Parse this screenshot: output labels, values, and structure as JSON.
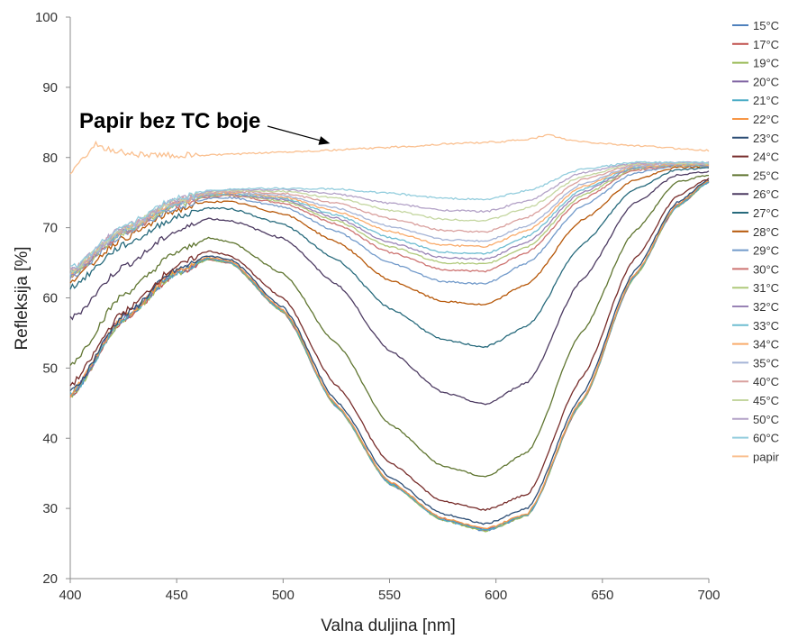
{
  "chart_data": {
    "type": "line",
    "xlabel": "Valna duljina [nm]",
    "ylabel": "Refleksija [%]",
    "xlim": [
      400,
      700
    ],
    "ylim": [
      20,
      100
    ],
    "xticks": [
      400,
      450,
      500,
      550,
      600,
      650,
      700
    ],
    "yticks": [
      20,
      30,
      40,
      50,
      60,
      70,
      80,
      90,
      100
    ],
    "grid": false,
    "legend_position": "right",
    "annotation": {
      "text": "Papir bez TC boje",
      "arrow_to": [
        522,
        82
      ]
    },
    "series": [
      {
        "name": "15°C",
        "color": "#4F81BD",
        "x": [
          400,
          425,
          450,
          465,
          475,
          500,
          525,
          550,
          575,
          595,
          615,
          640,
          665,
          685,
          700
        ],
        "y": [
          46.0,
          57.0,
          63.5,
          65.5,
          65.0,
          58.0,
          44.5,
          33.5,
          28.3,
          26.8,
          29.0,
          45.0,
          63.0,
          73.0,
          76.5
        ]
      },
      {
        "name": "17°C",
        "color": "#C0504D",
        "x": [
          400,
          425,
          450,
          465,
          475,
          500,
          525,
          550,
          575,
          595,
          615,
          640,
          665,
          685,
          700
        ],
        "y": [
          46.0,
          57.0,
          63.5,
          65.5,
          65.0,
          58.0,
          44.5,
          33.6,
          28.4,
          26.9,
          29.1,
          45.0,
          63.0,
          73.0,
          76.5
        ]
      },
      {
        "name": "19°C",
        "color": "#9BBB59",
        "x": [
          400,
          425,
          450,
          465,
          475,
          500,
          525,
          550,
          575,
          595,
          615,
          640,
          665,
          685,
          700
        ],
        "y": [
          46.0,
          57.0,
          63.5,
          65.5,
          65.0,
          58.0,
          44.5,
          33.5,
          28.3,
          26.8,
          29.0,
          45.0,
          63.0,
          73.0,
          76.5
        ]
      },
      {
        "name": "20°C",
        "color": "#8064A2",
        "x": [
          400,
          425,
          450,
          465,
          475,
          500,
          525,
          550,
          575,
          595,
          615,
          640,
          665,
          685,
          700
        ],
        "y": [
          46.2,
          57.2,
          63.7,
          65.7,
          65.2,
          58.2,
          44.7,
          33.7,
          28.5,
          27.0,
          29.2,
          45.2,
          63.2,
          73.2,
          76.6
        ]
      },
      {
        "name": "21°C",
        "color": "#4BACC6",
        "x": [
          400,
          425,
          450,
          465,
          475,
          500,
          525,
          550,
          575,
          595,
          615,
          640,
          665,
          685,
          700
        ],
        "y": [
          46.1,
          57.1,
          63.6,
          65.6,
          65.1,
          58.1,
          44.6,
          33.6,
          28.4,
          26.9,
          29.1,
          45.1,
          63.1,
          73.1,
          76.5
        ]
      },
      {
        "name": "22°C",
        "color": "#F79646",
        "x": [
          400,
          425,
          450,
          465,
          475,
          500,
          525,
          550,
          575,
          595,
          615,
          640,
          665,
          685,
          700
        ],
        "y": [
          46.3,
          57.3,
          63.8,
          65.8,
          65.3,
          58.3,
          44.8,
          33.8,
          28.6,
          27.1,
          29.3,
          45.3,
          63.3,
          73.3,
          76.7
        ]
      },
      {
        "name": "23°C",
        "color": "#2C4D75",
        "x": [
          400,
          425,
          450,
          465,
          475,
          500,
          525,
          550,
          575,
          595,
          615,
          640,
          665,
          685,
          700
        ],
        "y": [
          46.5,
          57.5,
          64.0,
          66.0,
          65.5,
          58.7,
          45.3,
          34.4,
          29.2,
          27.8,
          30.0,
          46.0,
          63.8,
          73.6,
          76.8
        ]
      },
      {
        "name": "24°C",
        "color": "#772C2A",
        "x": [
          400,
          425,
          450,
          465,
          475,
          500,
          525,
          550,
          575,
          595,
          615,
          640,
          665,
          685,
          700
        ],
        "y": [
          47.5,
          58.0,
          64.5,
          66.7,
          66.0,
          60.0,
          47.5,
          36.5,
          31.0,
          29.8,
          32.0,
          48.5,
          65.5,
          74.5,
          77.0
        ]
      },
      {
        "name": "25°C",
        "color": "#5F7530",
        "x": [
          400,
          425,
          450,
          465,
          475,
          500,
          525,
          550,
          575,
          595,
          615,
          640,
          665,
          685,
          700
        ],
        "y": [
          50.5,
          60.5,
          66.5,
          68.5,
          68.0,
          63.5,
          53.5,
          42.0,
          36.0,
          34.5,
          38.0,
          55.0,
          69.5,
          76.5,
          77.5
        ]
      },
      {
        "name": "26°C",
        "color": "#4D3B62",
        "x": [
          400,
          425,
          450,
          465,
          475,
          500,
          525,
          550,
          575,
          595,
          615,
          640,
          665,
          685,
          700
        ],
        "y": [
          57.0,
          64.5,
          69.5,
          71.3,
          71.0,
          68.5,
          62.0,
          52.5,
          46.5,
          44.8,
          48.0,
          62.5,
          73.5,
          77.5,
          78.0
        ]
      },
      {
        "name": "27°C",
        "color": "#276A7C",
        "x": [
          400,
          425,
          450,
          465,
          475,
          500,
          525,
          550,
          575,
          595,
          615,
          640,
          665,
          685,
          700
        ],
        "y": [
          61.5,
          67.5,
          71.5,
          72.8,
          72.7,
          70.5,
          65.5,
          58.5,
          54.0,
          53.0,
          56.0,
          67.5,
          75.5,
          78.3,
          78.5
        ]
      },
      {
        "name": "28°C",
        "color": "#B65708",
        "x": [
          400,
          425,
          450,
          465,
          475,
          500,
          525,
          550,
          575,
          595,
          615,
          640,
          665,
          685,
          700
        ],
        "y": [
          62.5,
          68.5,
          72.5,
          73.7,
          73.7,
          72.0,
          68.0,
          62.5,
          59.5,
          59.0,
          62.0,
          71.0,
          76.8,
          78.6,
          78.7
        ]
      },
      {
        "name": "29°C",
        "color": "#729ACA",
        "x": [
          400,
          425,
          450,
          465,
          475,
          500,
          525,
          550,
          575,
          595,
          615,
          640,
          665,
          685,
          700
        ],
        "y": [
          63.0,
          69.0,
          73.0,
          74.2,
          74.3,
          73.0,
          69.5,
          65.0,
          62.3,
          62.0,
          65.0,
          73.0,
          77.8,
          78.8,
          78.8
        ]
      },
      {
        "name": "30°C",
        "color": "#CD7371",
        "x": [
          400,
          425,
          450,
          465,
          475,
          500,
          525,
          550,
          575,
          595,
          615,
          640,
          665,
          685,
          700
        ],
        "y": [
          63.2,
          69.2,
          73.2,
          74.4,
          74.6,
          73.5,
          70.5,
          66.5,
          64.0,
          63.8,
          66.5,
          74.0,
          78.2,
          78.9,
          78.9
        ]
      },
      {
        "name": "31°C",
        "color": "#AFC97A",
        "x": [
          400,
          425,
          450,
          465,
          475,
          500,
          525,
          550,
          575,
          595,
          615,
          640,
          665,
          685,
          700
        ],
        "y": [
          63.3,
          69.3,
          73.3,
          74.5,
          74.7,
          73.8,
          71.0,
          67.3,
          65.0,
          64.8,
          67.3,
          74.5,
          78.4,
          78.9,
          78.9
        ]
      },
      {
        "name": "32°C",
        "color": "#9983B5",
        "x": [
          400,
          425,
          450,
          465,
          475,
          500,
          525,
          550,
          575,
          595,
          615,
          640,
          665,
          685,
          700
        ],
        "y": [
          63.4,
          69.4,
          73.4,
          74.6,
          74.8,
          74.0,
          71.4,
          67.9,
          65.7,
          65.5,
          68.0,
          75.0,
          78.5,
          79.0,
          79.0
        ]
      },
      {
        "name": "33°C",
        "color": "#6FBDD1",
        "x": [
          400,
          425,
          450,
          465,
          475,
          500,
          525,
          550,
          575,
          595,
          615,
          640,
          665,
          685,
          700
        ],
        "y": [
          63.5,
          69.5,
          73.5,
          74.7,
          74.9,
          74.2,
          71.8,
          68.6,
          66.5,
          66.3,
          68.8,
          75.4,
          78.6,
          79.0,
          79.0
        ]
      },
      {
        "name": "34°C",
        "color": "#F9AB6B",
        "x": [
          400,
          425,
          450,
          465,
          475,
          500,
          525,
          550,
          575,
          595,
          615,
          640,
          665,
          685,
          700
        ],
        "y": [
          63.6,
          69.6,
          73.6,
          74.8,
          75.0,
          74.4,
          72.3,
          69.5,
          67.5,
          67.3,
          69.6,
          75.8,
          78.7,
          79.0,
          79.0
        ]
      },
      {
        "name": "35°C",
        "color": "#A5B4D6",
        "x": [
          400,
          425,
          450,
          465,
          475,
          500,
          525,
          550,
          575,
          595,
          615,
          640,
          665,
          685,
          700
        ],
        "y": [
          63.7,
          69.7,
          73.7,
          74.9,
          75.1,
          74.6,
          72.8,
          70.2,
          68.3,
          68.1,
          70.3,
          76.2,
          78.8,
          79.1,
          79.1
        ]
      },
      {
        "name": "40°C",
        "color": "#D9A09E",
        "x": [
          400,
          425,
          450,
          465,
          475,
          500,
          525,
          550,
          575,
          595,
          615,
          640,
          665,
          685,
          700
        ],
        "y": [
          63.8,
          69.8,
          73.8,
          75.0,
          75.2,
          74.9,
          73.5,
          71.3,
          69.6,
          69.4,
          71.5,
          76.8,
          79.0,
          79.2,
          79.2
        ]
      },
      {
        "name": "45°C",
        "color": "#C4D6A0",
        "x": [
          400,
          425,
          450,
          465,
          475,
          500,
          525,
          550,
          575,
          595,
          615,
          640,
          665,
          685,
          700
        ],
        "y": [
          63.9,
          69.9,
          73.9,
          75.1,
          75.3,
          75.2,
          74.2,
          72.5,
          71.2,
          71.0,
          72.8,
          77.3,
          79.1,
          79.2,
          79.2
        ]
      },
      {
        "name": "50°C",
        "color": "#B3A2C7",
        "x": [
          400,
          425,
          450,
          465,
          475,
          500,
          525,
          550,
          575,
          595,
          615,
          640,
          665,
          685,
          700
        ],
        "y": [
          64.0,
          70.0,
          74.0,
          75.2,
          75.4,
          75.4,
          74.8,
          73.5,
          72.5,
          72.3,
          73.8,
          77.8,
          79.2,
          79.3,
          79.3
        ]
      },
      {
        "name": "60°C",
        "color": "#93CDDD",
        "x": [
          400,
          425,
          450,
          465,
          475,
          500,
          525,
          550,
          575,
          595,
          615,
          640,
          665,
          685,
          700
        ],
        "y": [
          64.2,
          70.2,
          74.2,
          75.3,
          75.5,
          75.6,
          75.5,
          74.9,
          74.2,
          74.0,
          75.3,
          78.3,
          79.3,
          79.3,
          79.3
        ]
      },
      {
        "name": "papir",
        "color": "#FAC090",
        "x": [
          400,
          405,
          412,
          420,
          430,
          440,
          460,
          480,
          500,
          520,
          540,
          560,
          580,
          600,
          615,
          625,
          635,
          650,
          670,
          690,
          700
        ],
        "y": [
          78.0,
          79.5,
          81.8,
          81.0,
          80.5,
          80.3,
          80.3,
          80.5,
          80.8,
          81.0,
          81.3,
          81.6,
          82.0,
          82.2,
          82.6,
          83.2,
          82.4,
          82.0,
          81.6,
          81.2,
          81.0
        ]
      }
    ]
  }
}
